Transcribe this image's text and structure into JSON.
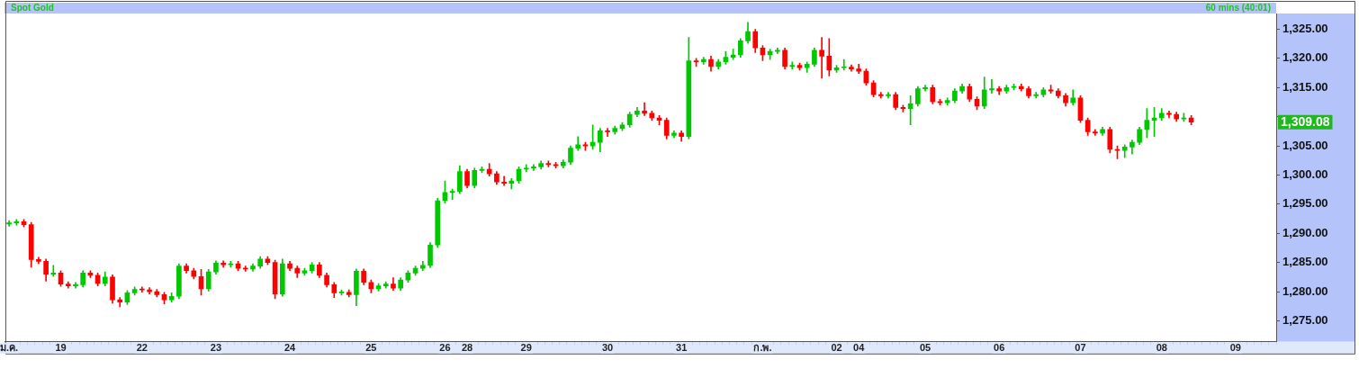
{
  "chart_data": {
    "type": "candlestick",
    "title": "Spot Gold",
    "subtitle": "60 mins (40:01)",
    "categories": [
      "ม.ค.",
      null,
      null,
      null,
      null,
      null,
      null,
      "19",
      null,
      null,
      null,
      null,
      null,
      null,
      null,
      null,
      null,
      null,
      "22",
      null,
      null,
      null,
      null,
      null,
      null,
      null,
      null,
      null,
      "23",
      null,
      null,
      null,
      null,
      null,
      null,
      null,
      null,
      null,
      "24",
      null,
      null,
      null,
      null,
      null,
      null,
      null,
      null,
      null,
      null,
      "25",
      null,
      null,
      null,
      null,
      null,
      null,
      null,
      null,
      null,
      "26",
      null,
      null,
      "28",
      null,
      null,
      null,
      null,
      null,
      null,
      null,
      "29",
      null,
      null,
      null,
      null,
      null,
      null,
      null,
      null,
      null,
      null,
      "30",
      null,
      null,
      null,
      null,
      null,
      null,
      null,
      null,
      null,
      "31",
      null,
      null,
      null,
      null,
      null,
      null,
      null,
      null,
      null,
      null,
      "ก.พ.",
      null,
      null,
      null,
      null,
      null,
      null,
      null,
      null,
      null,
      "02",
      null,
      null,
      "04",
      null,
      null,
      null,
      null,
      null,
      null,
      null,
      null,
      "05",
      null,
      null,
      null,
      null,
      null,
      null,
      null,
      null,
      null,
      "06",
      null,
      null,
      null,
      null,
      null,
      null,
      null,
      null,
      null,
      null,
      "07",
      null,
      null,
      null,
      null,
      null,
      null,
      null,
      null,
      null,
      null,
      "08",
      null,
      null,
      null,
      null,
      null,
      null,
      null,
      null,
      null,
      "09",
      null,
      null,
      null,
      null,
      null
    ],
    "ohlc": [
      [
        1291.6,
        1292.2,
        1291.2,
        1291.8
      ],
      [
        1291.8,
        1292.4,
        1291.4,
        1292.0
      ],
      [
        1292.0,
        1292.4,
        1291.1,
        1291.5
      ],
      [
        1291.5,
        1291.9,
        1284.2,
        1285.5
      ],
      [
        1285.5,
        1285.9,
        1284.8,
        1285.2
      ],
      [
        1285.2,
        1285.6,
        1281.8,
        1283.0
      ],
      [
        1283.0,
        1284.5,
        1282.6,
        1283.2
      ],
      [
        1283.2,
        1283.6,
        1280.9,
        1281.3
      ],
      [
        1281.3,
        1281.7,
        1280.6,
        1281.0
      ],
      [
        1281.0,
        1281.6,
        1280.6,
        1281.2
      ],
      [
        1281.2,
        1283.6,
        1280.8,
        1283.2
      ],
      [
        1283.2,
        1283.6,
        1282.4,
        1282.8
      ],
      [
        1282.8,
        1283.2,
        1281.0,
        1281.4
      ],
      [
        1281.4,
        1283.4,
        1281.0,
        1282.5
      ],
      [
        1282.5,
        1282.9,
        1278.0,
        1278.6
      ],
      [
        1278.6,
        1279.0,
        1277.4,
        1278.2
      ],
      [
        1278.2,
        1280.2,
        1277.8,
        1279.8
      ],
      [
        1279.8,
        1280.8,
        1279.4,
        1280.4
      ],
      [
        1280.4,
        1280.8,
        1279.9,
        1280.3
      ],
      [
        1280.3,
        1280.7,
        1279.6,
        1280.0
      ],
      [
        1280.0,
        1280.4,
        1279.1,
        1279.5
      ],
      [
        1279.5,
        1279.9,
        1277.9,
        1278.6
      ],
      [
        1278.6,
        1279.8,
        1278.2,
        1279.2
      ],
      [
        1279.2,
        1284.8,
        1278.8,
        1284.4
      ],
      [
        1284.4,
        1284.8,
        1283.2,
        1283.6
      ],
      [
        1283.6,
        1284.0,
        1282.2,
        1282.6
      ],
      [
        1282.6,
        1283.8,
        1279.4,
        1280.5
      ],
      [
        1280.5,
        1283.8,
        1280.1,
        1283.4
      ],
      [
        1283.4,
        1285.3,
        1283.0,
        1284.9
      ],
      [
        1284.9,
        1285.3,
        1284.2,
        1284.6
      ],
      [
        1284.6,
        1285.2,
        1284.2,
        1284.8
      ],
      [
        1284.8,
        1285.2,
        1283.6,
        1284.0
      ],
      [
        1284.0,
        1284.4,
        1283.5,
        1283.9
      ],
      [
        1283.9,
        1284.8,
        1283.5,
        1284.4
      ],
      [
        1284.4,
        1286.0,
        1284.0,
        1285.6
      ],
      [
        1285.6,
        1286.0,
        1284.6,
        1285.0
      ],
      [
        1285.0,
        1285.4,
        1278.8,
        1279.6
      ],
      [
        1279.6,
        1285.6,
        1279.2,
        1284.8
      ],
      [
        1284.8,
        1285.2,
        1283.6,
        1284.0
      ],
      [
        1284.0,
        1284.4,
        1282.4,
        1283.2
      ],
      [
        1283.2,
        1284.0,
        1282.8,
        1283.6
      ],
      [
        1283.6,
        1285.0,
        1283.2,
        1284.6
      ],
      [
        1284.6,
        1285.0,
        1282.4,
        1282.8
      ],
      [
        1282.8,
        1283.2,
        1280.8,
        1281.2
      ],
      [
        1281.2,
        1281.6,
        1279.0,
        1279.8
      ],
      [
        1279.8,
        1280.3,
        1279.4,
        1279.9
      ],
      [
        1279.9,
        1280.3,
        1279.1,
        1279.5
      ],
      [
        1279.5,
        1283.9,
        1277.6,
        1283.5
      ],
      [
        1283.5,
        1283.9,
        1281.2,
        1281.6
      ],
      [
        1281.6,
        1282.0,
        1279.8,
        1280.5
      ],
      [
        1280.5,
        1281.4,
        1280.1,
        1281.0
      ],
      [
        1281.0,
        1281.7,
        1280.6,
        1281.3
      ],
      [
        1281.3,
        1282.4,
        1280.2,
        1280.6
      ],
      [
        1280.6,
        1282.4,
        1280.2,
        1282.0
      ],
      [
        1282.0,
        1283.6,
        1281.6,
        1283.2
      ],
      [
        1283.2,
        1284.4,
        1282.8,
        1284.0
      ],
      [
        1284.0,
        1285.2,
        1283.6,
        1284.5
      ],
      [
        1284.5,
        1288.4,
        1284.1,
        1288.0
      ],
      [
        1288.0,
        1296.0,
        1287.6,
        1295.6
      ],
      [
        1295.6,
        1299.0,
        1295.2,
        1297.0
      ],
      [
        1297.0,
        1297.6,
        1295.8,
        1297.2
      ],
      [
        1297.2,
        1301.6,
        1296.8,
        1300.6
      ],
      [
        1300.6,
        1301.0,
        1297.8,
        1298.2
      ],
      [
        1298.2,
        1301.2,
        1297.8,
        1300.8
      ],
      [
        1300.8,
        1301.4,
        1300.4,
        1301.0
      ],
      [
        1301.0,
        1302.0,
        1299.8,
        1300.2
      ],
      [
        1300.2,
        1300.6,
        1298.4,
        1298.8
      ],
      [
        1298.8,
        1299.8,
        1298.2,
        1298.6
      ],
      [
        1298.6,
        1299.4,
        1297.6,
        1299.0
      ],
      [
        1299.0,
        1301.4,
        1298.6,
        1301.0
      ],
      [
        1301.0,
        1301.8,
        1300.6,
        1301.2
      ],
      [
        1301.2,
        1301.8,
        1300.8,
        1301.4
      ],
      [
        1301.4,
        1302.4,
        1301.0,
        1302.0
      ],
      [
        1302.0,
        1302.4,
        1301.4,
        1301.8
      ],
      [
        1301.8,
        1302.2,
        1301.2,
        1301.6
      ],
      [
        1301.6,
        1302.6,
        1301.2,
        1302.2
      ],
      [
        1302.2,
        1305.0,
        1301.8,
        1304.6
      ],
      [
        1304.6,
        1306.6,
        1304.2,
        1305.2
      ],
      [
        1305.2,
        1305.6,
        1304.2,
        1305.0
      ],
      [
        1305.0,
        1308.6,
        1304.4,
        1305.6
      ],
      [
        1305.6,
        1308.0,
        1304.0,
        1307.6
      ],
      [
        1307.6,
        1308.0,
        1306.6,
        1307.4
      ],
      [
        1307.4,
        1308.4,
        1307.0,
        1308.0
      ],
      [
        1308.0,
        1309.0,
        1307.6,
        1308.6
      ],
      [
        1308.6,
        1310.8,
        1308.2,
        1310.4
      ],
      [
        1310.4,
        1311.6,
        1310.0,
        1311.0
      ],
      [
        1311.0,
        1312.4,
        1310.2,
        1310.6
      ],
      [
        1310.6,
        1311.0,
        1309.4,
        1309.8
      ],
      [
        1309.8,
        1310.2,
        1308.6,
        1309.4
      ],
      [
        1309.4,
        1309.8,
        1306.2,
        1306.8
      ],
      [
        1306.8,
        1307.6,
        1306.4,
        1307.2
      ],
      [
        1307.2,
        1307.6,
        1305.8,
        1306.6
      ],
      [
        1306.6,
        1323.6,
        1306.2,
        1319.6
      ],
      [
        1319.6,
        1320.0,
        1318.6,
        1319.4
      ],
      [
        1319.4,
        1320.2,
        1319.0,
        1319.8
      ],
      [
        1319.8,
        1320.4,
        1317.8,
        1318.6
      ],
      [
        1318.6,
        1319.8,
        1318.2,
        1319.4
      ],
      [
        1319.4,
        1321.2,
        1319.0,
        1320.2
      ],
      [
        1320.2,
        1321.6,
        1319.8,
        1320.6
      ],
      [
        1320.6,
        1323.4,
        1320.2,
        1323.0
      ],
      [
        1323.0,
        1326.2,
        1322.6,
        1324.6
      ],
      [
        1324.6,
        1325.0,
        1321.0,
        1321.8
      ],
      [
        1321.8,
        1322.2,
        1319.6,
        1320.6
      ],
      [
        1320.6,
        1321.6,
        1319.8,
        1321.2
      ],
      [
        1321.2,
        1321.8,
        1320.8,
        1321.4
      ],
      [
        1321.4,
        1321.8,
        1318.2,
        1318.6
      ],
      [
        1318.6,
        1319.4,
        1318.2,
        1318.8
      ],
      [
        1318.8,
        1319.2,
        1318.0,
        1318.4
      ],
      [
        1318.4,
        1319.4,
        1317.6,
        1319.0
      ],
      [
        1319.0,
        1321.8,
        1318.6,
        1321.4
      ],
      [
        1321.4,
        1323.6,
        1316.6,
        1320.4
      ],
      [
        1320.4,
        1323.4,
        1317.0,
        1318.0
      ],
      [
        1318.0,
        1318.8,
        1317.6,
        1318.4
      ],
      [
        1318.4,
        1319.8,
        1318.0,
        1318.5
      ],
      [
        1318.5,
        1318.9,
        1317.8,
        1318.2
      ],
      [
        1318.2,
        1319.0,
        1317.4,
        1317.8
      ],
      [
        1317.8,
        1318.2,
        1315.4,
        1315.8
      ],
      [
        1315.8,
        1316.2,
        1313.4,
        1313.8
      ],
      [
        1313.8,
        1314.2,
        1313.2,
        1313.6
      ],
      [
        1313.6,
        1314.2,
        1313.2,
        1313.8
      ],
      [
        1313.8,
        1314.2,
        1311.2,
        1311.6
      ],
      [
        1311.6,
        1312.0,
        1310.8,
        1311.4
      ],
      [
        1311.4,
        1313.6,
        1308.6,
        1312.2
      ],
      [
        1312.2,
        1315.2,
        1311.8,
        1314.8
      ],
      [
        1314.8,
        1315.4,
        1314.4,
        1315.0
      ],
      [
        1315.0,
        1315.4,
        1312.2,
        1312.6
      ],
      [
        1312.6,
        1313.0,
        1312.0,
        1312.4
      ],
      [
        1312.4,
        1313.2,
        1312.0,
        1312.8
      ],
      [
        1312.8,
        1314.8,
        1312.4,
        1314.4
      ],
      [
        1314.4,
        1315.6,
        1314.0,
        1315.2
      ],
      [
        1315.2,
        1315.6,
        1312.6,
        1313.0
      ],
      [
        1313.0,
        1313.4,
        1311.2,
        1311.8
      ],
      [
        1311.8,
        1316.8,
        1311.4,
        1314.6
      ],
      [
        1314.6,
        1316.4,
        1314.0,
        1314.8
      ],
      [
        1314.8,
        1315.2,
        1313.8,
        1314.4
      ],
      [
        1314.4,
        1315.4,
        1314.0,
        1315.0
      ],
      [
        1315.0,
        1315.6,
        1314.6,
        1315.2
      ],
      [
        1315.2,
        1315.6,
        1314.4,
        1314.8
      ],
      [
        1314.8,
        1315.2,
        1313.2,
        1313.6
      ],
      [
        1313.6,
        1314.2,
        1313.2,
        1313.8
      ],
      [
        1313.8,
        1315.0,
        1313.4,
        1314.6
      ],
      [
        1314.6,
        1315.4,
        1314.0,
        1314.4
      ],
      [
        1314.4,
        1314.8,
        1313.2,
        1313.6
      ],
      [
        1313.6,
        1314.0,
        1311.8,
        1312.4
      ],
      [
        1312.4,
        1314.6,
        1312.0,
        1313.2
      ],
      [
        1313.2,
        1313.6,
        1309.0,
        1309.4
      ],
      [
        1309.4,
        1309.8,
        1306.8,
        1307.4
      ],
      [
        1307.4,
        1307.8,
        1306.8,
        1307.2
      ],
      [
        1307.2,
        1308.2,
        1306.8,
        1307.8
      ],
      [
        1307.8,
        1308.2,
        1303.8,
        1304.4
      ],
      [
        1304.4,
        1305.0,
        1302.8,
        1304.2
      ],
      [
        1304.2,
        1305.2,
        1303.0,
        1304.8
      ],
      [
        1304.8,
        1306.0,
        1303.6,
        1305.6
      ],
      [
        1305.6,
        1308.2,
        1305.2,
        1307.8
      ],
      [
        1307.8,
        1311.4,
        1306.4,
        1309.4
      ],
      [
        1309.4,
        1311.6,
        1306.6,
        1309.8
      ],
      [
        1309.8,
        1311.4,
        1309.4,
        1310.6
      ],
      [
        1310.6,
        1311.0,
        1309.8,
        1310.4
      ],
      [
        1310.4,
        1310.8,
        1309.2,
        1309.6
      ],
      [
        1309.6,
        1310.6,
        1309.2,
        1309.8
      ],
      [
        1309.8,
        1310.2,
        1308.6,
        1309.08
      ],
      null,
      null,
      null,
      null,
      null,
      null,
      null,
      null,
      null,
      null,
      null
    ],
    "colors": [
      "#00c800",
      "#00c800",
      "#ff0000",
      "#ff0000",
      "#ff0000",
      "#ff0000",
      "#00c800",
      "#ff0000",
      "#ff0000",
      "#00c800",
      "#00c800",
      "#ff0000",
      "#ff0000",
      "#00c800",
      "#ff0000",
      "#ff0000",
      "#00c800",
      "#00c800",
      "#ff0000",
      "#ff0000",
      "#ff0000",
      "#ff0000",
      "#00c800",
      "#00c800",
      "#ff0000",
      "#ff0000",
      "#ff0000",
      "#00c800",
      "#00c800",
      "#ff0000",
      "#00c800",
      "#ff0000",
      "#ff0000",
      "#00c800",
      "#00c800",
      "#ff0000",
      "#ff0000",
      "#00c800",
      "#ff0000",
      "#ff0000",
      "#00c800",
      "#00c800",
      "#ff0000",
      "#ff0000",
      "#ff0000",
      "#00c800",
      "#ff0000",
      "#00c800",
      "#ff0000",
      "#ff0000",
      "#00c800",
      "#00c800",
      "#ff0000",
      "#00c800",
      "#00c800",
      "#00c800",
      "#00c800",
      "#00c800",
      "#00c800",
      "#00c800",
      "#00c800",
      "#00c800",
      "#ff0000",
      "#00c800",
      "#00c800",
      "#ff0000",
      "#ff0000",
      "#ff0000",
      "#00c800",
      "#00c800",
      "#00c800",
      "#00c800",
      "#00c800",
      "#ff0000",
      "#ff0000",
      "#00c800",
      "#00c800",
      "#00c800",
      "#ff0000",
      "#00c800",
      "#00c800",
      "#ff0000",
      "#00c800",
      "#00c800",
      "#00c800",
      "#00c800",
      "#ff0000",
      "#ff0000",
      "#ff0000",
      "#ff0000",
      "#00c800",
      "#ff0000",
      "#00c800",
      "#ff0000",
      "#00c800",
      "#ff0000",
      "#00c800",
      "#00c800",
      "#00c800",
      "#00c800",
      "#00c800",
      "#ff0000",
      "#ff0000",
      "#00c800",
      "#00c800",
      "#ff0000",
      "#00c800",
      "#ff0000",
      "#00c800",
      "#00c800",
      "#ff0000",
      "#ff0000",
      "#00c800",
      "#00c800",
      "#ff0000",
      "#ff0000",
      "#ff0000",
      "#ff0000",
      "#ff0000",
      "#00c800",
      "#ff0000",
      "#ff0000",
      "#00c800",
      "#00c800",
      "#00c800",
      "#ff0000",
      "#ff0000",
      "#00c800",
      "#00c800",
      "#00c800",
      "#ff0000",
      "#ff0000",
      "#00c800",
      "#00c800",
      "#ff0000",
      "#00c800",
      "#00c800",
      "#ff0000",
      "#ff0000",
      "#00c800",
      "#00c800",
      "#ff0000",
      "#ff0000",
      "#ff0000",
      "#00c800",
      "#ff0000",
      "#ff0000",
      "#ff0000",
      "#00c800",
      "#ff0000",
      "#ff0000",
      "#00c800",
      "#00c800",
      "#00c800",
      "#00c800",
      "#00c800",
      "#00c800",
      "#ff0000",
      "#ff0000",
      "#00c800",
      "#ff0000",
      null,
      null,
      null,
      null,
      null,
      null,
      null,
      null,
      null,
      null,
      null
    ],
    "ylim": [
      1271.4,
      1327.7
    ],
    "yticks": [
      {
        "value": 1275,
        "label": "1,275.00"
      },
      {
        "value": 1280,
        "label": "1,280.00"
      },
      {
        "value": 1285,
        "label": "1,285.00"
      },
      {
        "value": 1290,
        "label": "1,290.00"
      },
      {
        "value": 1295,
        "label": "1,295.00"
      },
      {
        "value": 1300,
        "label": "1,300.00"
      },
      {
        "value": 1305,
        "label": "1,305.00"
      },
      {
        "value": 1310,
        "label": null
      },
      {
        "value": 1315,
        "label": "1,315.00"
      },
      {
        "value": 1320,
        "label": "1,320.00"
      },
      {
        "value": 1325,
        "label": "1,325.00"
      }
    ],
    "annotations": [
      "1,309.08"
    ],
    "grid": false,
    "legend": false
  }
}
